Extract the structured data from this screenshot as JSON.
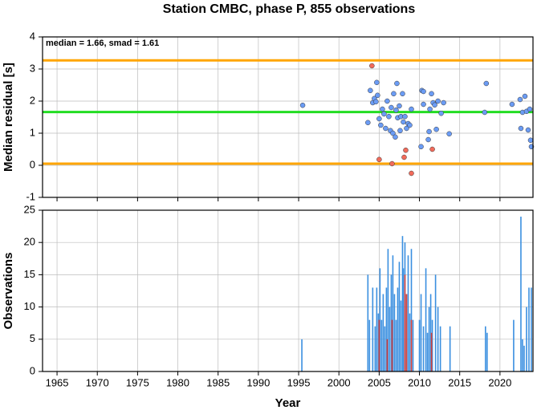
{
  "chart_data": [
    {
      "type": "scatter",
      "title": "Station CMBC, phase P, 855 observations",
      "annotation": "median = 1.66, smad = 1.61",
      "ylabel": "Median residual [s]",
      "xlim": [
        1963.2,
        2024.1
      ],
      "xticks": [
        1965,
        1970,
        1975,
        1980,
        1985,
        1990,
        1995,
        2000,
        2005,
        2010,
        2015,
        2020
      ],
      "ylim": [
        -1,
        4
      ],
      "yticks": [
        -1,
        0,
        1,
        2,
        3,
        4
      ],
      "grid": true,
      "reference_lines": [
        {
          "value": 3.27,
          "color": "#ffa500"
        },
        {
          "value": 1.66,
          "color": "#22dd22"
        },
        {
          "value": 0.05,
          "color": "#ffa500"
        }
      ],
      "series": [
        {
          "color": "#6b9cf5",
          "x": [
            1995.5,
            2003.6,
            2003.9,
            2004.2,
            2004.4,
            2004.7,
            2004.8,
            2004.6,
            2005.0,
            2005.2,
            2005.4,
            2005.6,
            2005.8,
            2006.0,
            2006.2,
            2006.4,
            2006.5,
            2006.7,
            2006.8,
            2007.0,
            2007.1,
            2007.2,
            2007.3,
            2007.5,
            2007.6,
            2007.7,
            2007.9,
            2008.0,
            2008.2,
            2008.4,
            2008.6,
            2008.8,
            2009.0,
            2010.3,
            2010.5,
            2010.2,
            2010.5,
            2011.1,
            2011.3,
            2011.2,
            2011.5,
            2011.7,
            2011.9,
            2012.1,
            2012.3,
            2012.7,
            2013.0,
            2013.7,
            2018.1,
            2018.3,
            2021.5,
            2022.5,
            2022.6,
            2022.8,
            2023.1,
            2023.3,
            2023.5,
            2023.7,
            2023.8,
            2023.9
          ],
          "values": [
            1.87,
            1.33,
            2.33,
            1.95,
            2.08,
            2.58,
            2.18,
            1.98,
            1.45,
            1.25,
            1.75,
            1.6,
            1.15,
            2.0,
            1.52,
            1.08,
            1.8,
            1.0,
            2.23,
            0.88,
            1.72,
            2.55,
            1.48,
            1.85,
            1.08,
            1.52,
            2.23,
            1.35,
            1.52,
            1.15,
            1.3,
            1.25,
            1.75,
            2.33,
            2.3,
            0.58,
            1.9,
            0.8,
            1.75,
            1.05,
            2.23,
            1.95,
            1.88,
            1.12,
            2.0,
            1.62,
            1.95,
            0.98,
            1.65,
            2.55,
            1.9,
            2.05,
            1.15,
            1.65,
            2.15,
            1.68,
            1.1,
            1.75,
            0.78,
            0.58
          ]
        },
        {
          "color": "#f26b5b",
          "x": [
            2004.1,
            2005.0,
            2006.6,
            2008.3,
            2008.1,
            2009.0,
            2011.6
          ],
          "values": [
            3.1,
            0.18,
            0.05,
            0.47,
            0.25,
            -0.25,
            0.5
          ]
        }
      ]
    },
    {
      "type": "bar",
      "ylabel": "Observations",
      "xlabel": "Year",
      "xlim": [
        1963.2,
        2024.1
      ],
      "xticks": [
        1965,
        1970,
        1975,
        1980,
        1985,
        1990,
        1995,
        2000,
        2005,
        2010,
        2015,
        2020
      ],
      "ylim": [
        0,
        25
      ],
      "yticks": [
        0,
        5,
        10,
        15,
        20,
        25
      ],
      "grid": true,
      "series": [
        {
          "color": "#3a8fe0",
          "x": [
            1995.4,
            2003.6,
            2003.8,
            2004.2,
            2004.5,
            2004.7,
            2004.9,
            2005.1,
            2005.3,
            2005.5,
            2005.7,
            2005.9,
            2006.1,
            2006.3,
            2006.5,
            2006.7,
            2006.9,
            2007.1,
            2007.3,
            2007.5,
            2007.7,
            2007.9,
            2008.0,
            2008.2,
            2008.4,
            2008.6,
            2008.8,
            2009.0,
            2009.2,
            2010.0,
            2010.2,
            2010.5,
            2010.8,
            2011.0,
            2011.2,
            2011.4,
            2011.6,
            2012.0,
            2012.3,
            2012.6,
            2013.8,
            2018.2,
            2018.4,
            2021.7,
            2022.6,
            2022.8,
            2023.0,
            2023.3,
            2023.6,
            2023.9
          ],
          "values": [
            5,
            15,
            8,
            13,
            7,
            13,
            9,
            16,
            8,
            12,
            7,
            13,
            19,
            10,
            15,
            18,
            12,
            8,
            13,
            17,
            11,
            21,
            16,
            20,
            12,
            18,
            9,
            19,
            8,
            8,
            12,
            7,
            16,
            6,
            10,
            12,
            8,
            15,
            10,
            7,
            7,
            7,
            6,
            8,
            24,
            5,
            4,
            10,
            13,
            13
          ]
        },
        {
          "color": "#d9413a",
          "x": [
            2005.0,
            2006.0,
            2006.6,
            2008.2,
            2008.4,
            2009.0,
            2011.5
          ],
          "values": [
            8,
            5,
            8,
            15,
            12,
            8,
            6
          ]
        }
      ]
    }
  ]
}
